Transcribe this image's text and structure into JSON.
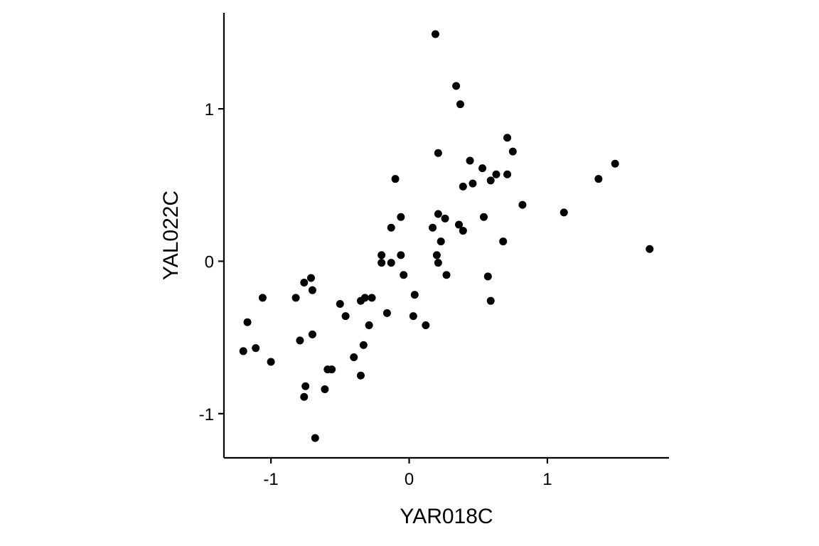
{
  "chart_data": {
    "type": "scatter",
    "xlabel": "YAR018C",
    "ylabel": "YAL022C",
    "xlim": [
      -1.34,
      1.88
    ],
    "ylim": [
      -1.29,
      1.63
    ],
    "xticks": [
      -1,
      0,
      1
    ],
    "yticks": [
      -1,
      0,
      1
    ],
    "xtick_labels": [
      "-1",
      "0",
      "1"
    ],
    "ytick_labels": [
      "-1",
      "0",
      "1"
    ],
    "grid": false,
    "legend": "none",
    "point_color": "#000000",
    "points": [
      [
        0.19,
        1.49
      ],
      [
        0.34,
        1.15
      ],
      [
        0.37,
        1.03
      ],
      [
        0.71,
        0.81
      ],
      [
        0.75,
        0.72
      ],
      [
        0.21,
        0.71
      ],
      [
        0.44,
        0.66
      ],
      [
        1.49,
        0.64
      ],
      [
        0.53,
        0.61
      ],
      [
        0.63,
        0.57
      ],
      [
        0.71,
        0.57
      ],
      [
        1.37,
        0.54
      ],
      [
        -0.1,
        0.54
      ],
      [
        0.59,
        0.53
      ],
      [
        0.46,
        0.51
      ],
      [
        0.39,
        0.49
      ],
      [
        0.82,
        0.37
      ],
      [
        1.12,
        0.32
      ],
      [
        0.21,
        0.31
      ],
      [
        -0.06,
        0.29
      ],
      [
        0.54,
        0.29
      ],
      [
        0.26,
        0.28
      ],
      [
        0.36,
        0.24
      ],
      [
        -0.13,
        0.22
      ],
      [
        0.17,
        0.22
      ],
      [
        0.39,
        0.2
      ],
      [
        0.23,
        0.13
      ],
      [
        0.68,
        0.13
      ],
      [
        1.74,
        0.08
      ],
      [
        -0.2,
        0.04
      ],
      [
        -0.06,
        0.04
      ],
      [
        0.2,
        0.04
      ],
      [
        -0.2,
        -0.01
      ],
      [
        -0.13,
        -0.01
      ],
      [
        0.21,
        -0.01
      ],
      [
        -0.04,
        -0.09
      ],
      [
        0.27,
        -0.09
      ],
      [
        0.57,
        -0.1
      ],
      [
        -0.71,
        -0.11
      ],
      [
        -0.76,
        -0.14
      ],
      [
        -0.7,
        -0.19
      ],
      [
        0.04,
        -0.22
      ],
      [
        -1.06,
        -0.24
      ],
      [
        -0.82,
        -0.24
      ],
      [
        -0.32,
        -0.24
      ],
      [
        -0.27,
        -0.24
      ],
      [
        -0.35,
        -0.26
      ],
      [
        0.59,
        -0.26
      ],
      [
        -0.5,
        -0.28
      ],
      [
        -0.16,
        -0.34
      ],
      [
        -0.46,
        -0.36
      ],
      [
        0.03,
        -0.36
      ],
      [
        -1.17,
        -0.4
      ],
      [
        -0.29,
        -0.42
      ],
      [
        0.12,
        -0.42
      ],
      [
        -0.7,
        -0.48
      ],
      [
        -0.79,
        -0.52
      ],
      [
        -0.33,
        -0.55
      ],
      [
        -1.11,
        -0.57
      ],
      [
        -1.2,
        -0.59
      ],
      [
        -0.4,
        -0.63
      ],
      [
        -1.0,
        -0.66
      ],
      [
        -0.59,
        -0.71
      ],
      [
        -0.56,
        -0.71
      ],
      [
        -0.35,
        -0.75
      ],
      [
        -0.75,
        -0.82
      ],
      [
        -0.61,
        -0.84
      ],
      [
        -0.76,
        -0.89
      ],
      [
        -0.68,
        -1.16
      ]
    ]
  }
}
